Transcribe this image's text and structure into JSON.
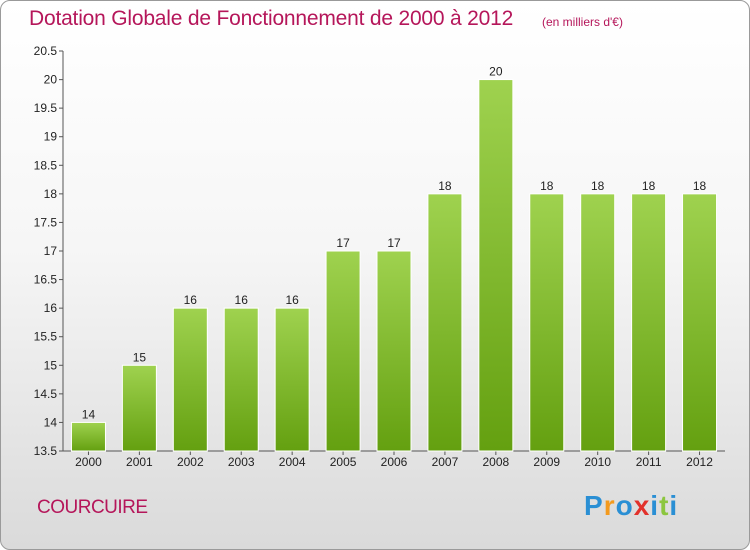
{
  "chart_data": {
    "type": "bar",
    "title": "Dotation Globale de Fonctionnement de 2000 à 2012",
    "subtitle": "(en milliers d'€)",
    "categories": [
      "2000",
      "2001",
      "2002",
      "2003",
      "2004",
      "2005",
      "2006",
      "2007",
      "2008",
      "2009",
      "2010",
      "2011",
      "2012"
    ],
    "values": [
      14,
      15,
      16,
      16,
      16,
      17,
      17,
      18,
      20,
      18,
      18,
      18,
      18
    ],
    "value_labels": [
      "14",
      "15",
      "16",
      "16",
      "16",
      "17",
      "17",
      "18",
      "20",
      "18",
      "18",
      "18",
      "18"
    ],
    "ylim": [
      13.5,
      20.5
    ],
    "yticks": [
      "13.5",
      "14",
      "14.5",
      "15",
      "15.5",
      "16",
      "16.5",
      "17",
      "17.5",
      "18",
      "18.5",
      "19",
      "19.5",
      "20",
      "20.5"
    ],
    "xlabel": "",
    "ylabel": "",
    "grid": false,
    "bar_color": "#8cc63f",
    "bar_color_dark": "#64a010"
  },
  "commune": "COURCUIRE",
  "brand": {
    "letters": [
      "P",
      "r",
      "o",
      "x",
      "i",
      "t",
      "i"
    ],
    "colors": [
      "#2a8fd4",
      "#f39a1e",
      "#2a8fd4",
      "#e2322c",
      "#2a8fd4",
      "#8cc63f",
      "#2a8fd4"
    ]
  }
}
